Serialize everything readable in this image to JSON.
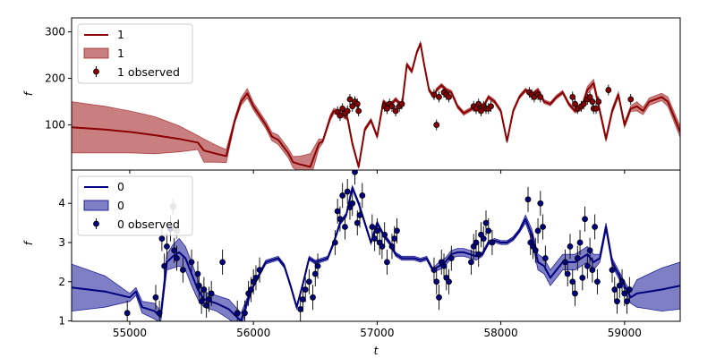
{
  "chart_data": [
    {
      "type": "line",
      "panel": "top",
      "xlabel": "",
      "ylabel": "f",
      "xlim": [
        54530,
        59450
      ],
      "ylim": [
        3,
        330
      ],
      "yticks": [
        100,
        200,
        300
      ],
      "xticks": [
        55000,
        56000,
        57000,
        58000,
        59000
      ],
      "x_ticklabels_visible": false,
      "grid": false,
      "legend_position": "top-left",
      "legend": [
        {
          "kind": "line",
          "label": "1"
        },
        {
          "kind": "band",
          "label": "1"
        },
        {
          "kind": "errorbar",
          "label": "1 observed"
        }
      ],
      "colors": {
        "line": "#8b0000",
        "band": "#a52a2a",
        "band_alpha": 0.6,
        "marker": "#8b0000"
      },
      "model_line": {
        "x": [
          54530,
          54800,
          55000,
          55200,
          55400,
          55550,
          55600,
          55700,
          55780,
          55850,
          55900,
          55950,
          56000,
          56100,
          56150,
          56200,
          56280,
          56320,
          56380,
          56460,
          56530,
          56560,
          56620,
          56650,
          56700,
          56760,
          56800,
          56850,
          56900,
          56950,
          57000,
          57050,
          57100,
          57150,
          57200,
          57240,
          57280,
          57320,
          57350,
          57380,
          57420,
          57460,
          57480,
          57520,
          57560,
          57600,
          57650,
          57700,
          57800,
          57850,
          57900,
          57950,
          58000,
          58050,
          58100,
          58150,
          58200,
          58250,
          58300,
          58350,
          58400,
          58450,
          58500,
          58550,
          58600,
          58650,
          58700,
          58750,
          58800,
          58850,
          58900,
          58950,
          59000,
          59050,
          59100,
          59150,
          59200,
          59300,
          59350,
          59450
        ],
        "y": [
          95,
          90,
          85,
          78,
          70,
          62,
          45,
          38,
          33,
          110,
          150,
          168,
          140,
          100,
          75,
          68,
          40,
          20,
          15,
          10,
          60,
          65,
          115,
          130,
          125,
          115,
          60,
          10,
          90,
          110,
          75,
          150,
          140,
          155,
          140,
          230,
          215,
          255,
          275,
          230,
          175,
          160,
          175,
          185,
          175,
          170,
          140,
          125,
          140,
          135,
          160,
          150,
          130,
          65,
          130,
          160,
          175,
          165,
          175,
          150,
          145,
          160,
          170,
          145,
          130,
          135,
          175,
          190,
          130,
          70,
          130,
          165,
          100,
          135,
          140,
          130,
          150,
          160,
          150,
          85
        ],
        "band_halfwidth": [
          55,
          50,
          45,
          40,
          28,
          15,
          25,
          18,
          14,
          6,
          8,
          10,
          8,
          8,
          9,
          10,
          10,
          12,
          18,
          28,
          10,
          4,
          6,
          6,
          5,
          5,
          5,
          4,
          4,
          4,
          4,
          4,
          4,
          4,
          4,
          4,
          4,
          4,
          4,
          4,
          4,
          4,
          4,
          4,
          4,
          4,
          4,
          4,
          4,
          4,
          4,
          4,
          4,
          4,
          4,
          4,
          4,
          4,
          4,
          4,
          4,
          4,
          4,
          4,
          4,
          4,
          8,
          8,
          6,
          6,
          6,
          6,
          6,
          6,
          10,
          8,
          8,
          8,
          10,
          12
        ]
      },
      "observed": {
        "x": [
          56680,
          56700,
          56720,
          56740,
          56760,
          56780,
          56800,
          56820,
          56840,
          56850,
          57060,
          57080,
          57100,
          57120,
          57150,
          57180,
          57200,
          57460,
          57480,
          57500,
          57540,
          57560,
          57580,
          57780,
          57800,
          57820,
          57840,
          57860,
          57880,
          57900,
          57920,
          58230,
          58250,
          58270,
          58300,
          58320,
          58580,
          58600,
          58620,
          58650,
          58670,
          58700,
          58720,
          58740,
          58750,
          58770,
          58790,
          58870,
          59050
        ],
        "y": [
          128,
          120,
          135,
          125,
          130,
          155,
          140,
          150,
          145,
          130,
          140,
          135,
          145,
          140,
          130,
          140,
          145,
          165,
          100,
          160,
          170,
          165,
          160,
          140,
          135,
          145,
          130,
          140,
          135,
          135,
          140,
          170,
          165,
          160,
          165,
          160,
          160,
          145,
          135,
          140,
          145,
          155,
          160,
          150,
          135,
          135,
          150,
          175,
          155
        ]
      }
    },
    {
      "type": "line",
      "panel": "bottom",
      "xlabel": "t",
      "ylabel": "f",
      "xlim": [
        54530,
        59450
      ],
      "ylim": [
        0.99,
        4.85
      ],
      "yticks": [
        1,
        2,
        3,
        4
      ],
      "xticks": [
        55000,
        56000,
        57000,
        58000,
        59000
      ],
      "xticklabels": [
        "55000",
        "56000",
        "57000",
        "58000",
        "59000"
      ],
      "yticklabels": [
        "1",
        "2",
        "3",
        "4"
      ],
      "grid": false,
      "legend_position": "top-left",
      "legend": [
        {
          "kind": "line",
          "label": "0"
        },
        {
          "kind": "band",
          "label": "0"
        },
        {
          "kind": "errorbar",
          "label": "0 observed"
        }
      ],
      "colors": {
        "line": "#000080",
        "band": "#00008b",
        "band_alpha": 0.5,
        "marker": "#000080"
      },
      "model_line": {
        "x": [
          54530,
          54800,
          55000,
          55050,
          55100,
          55200,
          55250,
          55300,
          55350,
          55400,
          55450,
          55500,
          55550,
          55600,
          55700,
          55800,
          55900,
          55950,
          56000,
          56050,
          56100,
          56150,
          56200,
          56250,
          56300,
          56350,
          56400,
          56450,
          56500,
          56600,
          56650,
          56700,
          56750,
          56800,
          56850,
          56900,
          56950,
          57000,
          57050,
          57100,
          57150,
          57200,
          57300,
          57350,
          57400,
          57450,
          57500,
          57550,
          57600,
          57650,
          57700,
          57750,
          57800,
          57850,
          57900,
          57950,
          58000,
          58050,
          58100,
          58150,
          58200,
          58250,
          58300,
          58350,
          58400,
          58450,
          58500,
          58550,
          58600,
          58650,
          58700,
          58750,
          58800,
          58850,
          58900,
          58950,
          59000,
          59050,
          59100,
          59200,
          59300,
          59450
        ],
        "y": [
          1.85,
          1.75,
          1.6,
          1.75,
          1.35,
          1.25,
          1.1,
          2.5,
          2.65,
          2.75,
          2.6,
          2.2,
          1.8,
          1.55,
          1.45,
          1.3,
          1.0,
          1.5,
          1.9,
          2.2,
          2.5,
          2.55,
          2.6,
          2.4,
          1.9,
          1.35,
          1.95,
          2.6,
          2.5,
          2.6,
          3.0,
          3.5,
          3.7,
          4.4,
          4.0,
          3.5,
          3.0,
          3.5,
          3.2,
          3.0,
          2.7,
          2.6,
          2.6,
          2.55,
          2.6,
          2.3,
          2.4,
          2.5,
          2.7,
          2.75,
          2.75,
          2.7,
          2.65,
          2.7,
          3.0,
          3.05,
          3.0,
          3.0,
          3.1,
          3.3,
          3.6,
          3.2,
          2.5,
          2.4,
          2.1,
          2.3,
          2.5,
          2.5,
          2.5,
          2.6,
          2.7,
          2.5,
          2.6,
          3.4,
          2.5,
          2.2,
          1.9,
          1.6,
          1.7,
          1.75,
          1.8,
          1.9
        ],
        "band_halfwidth": [
          0.6,
          0.4,
          0.1,
          0.1,
          0.15,
          0.2,
          0.15,
          0.2,
          0.3,
          0.35,
          0.3,
          0.3,
          0.25,
          0.2,
          0.2,
          0.25,
          0.2,
          0.1,
          0.05,
          0.05,
          0.05,
          0.05,
          0.05,
          0.05,
          0.05,
          0.05,
          0.05,
          0.05,
          0.05,
          0.05,
          0.05,
          0.05,
          0.05,
          0.05,
          0.05,
          0.05,
          0.05,
          0.05,
          0.05,
          0.05,
          0.05,
          0.05,
          0.05,
          0.05,
          0.05,
          0.05,
          0.1,
          0.1,
          0.1,
          0.1,
          0.1,
          0.1,
          0.1,
          0.05,
          0.05,
          0.05,
          0.05,
          0.05,
          0.05,
          0.05,
          0.1,
          0.15,
          0.2,
          0.2,
          0.2,
          0.2,
          0.2,
          0.2,
          0.2,
          0.2,
          0.2,
          0.2,
          0.1,
          0.1,
          0.1,
          0.1,
          0.1,
          0.15,
          0.35,
          0.45,
          0.55,
          0.6
        ]
      },
      "observed": {
        "x": [
          54980,
          55210,
          55240,
          55260,
          55280,
          55300,
          55330,
          55360,
          55380,
          55430,
          55500,
          55550,
          55560,
          55580,
          55600,
          55620,
          55640,
          55660,
          55750,
          55870,
          55930,
          55960,
          55980,
          56000,
          56020,
          56050,
          56380,
          56400,
          56420,
          56450,
          56480,
          56500,
          56520,
          56660,
          56680,
          56700,
          56720,
          56740,
          56760,
          56780,
          56800,
          56820,
          56840,
          56860,
          56880,
          56960,
          56980,
          57000,
          57020,
          57040,
          57060,
          57080,
          57120,
          57140,
          57160,
          57460,
          57480,
          57500,
          57520,
          57540,
          57560,
          57580,
          57600,
          57760,
          57780,
          57800,
          57820,
          57840,
          57860,
          57880,
          57900,
          57930,
          58220,
          58240,
          58260,
          58280,
          58300,
          58320,
          58340,
          58360,
          58520,
          58540,
          58560,
          58580,
          58600,
          58620,
          58640,
          58660,
          58680,
          58700,
          58720,
          58740,
          58760,
          58780,
          58900,
          58920,
          58940,
          58960,
          58980,
          59000,
          59020,
          59040
        ],
        "y": [
          1.2,
          1.6,
          1.2,
          3.1,
          2.4,
          2.9,
          3.35,
          2.8,
          2.6,
          2.3,
          2.5,
          2.2,
          1.9,
          1.5,
          1.8,
          1.4,
          1.55,
          1.7,
          2.5,
          1.2,
          1.2,
          1.7,
          1.8,
          2.0,
          2.1,
          2.3,
          1.3,
          1.55,
          1.8,
          2.0,
          1.6,
          2.2,
          2.4,
          3.0,
          3.8,
          3.6,
          4.2,
          3.4,
          4.3,
          3.9,
          4.0,
          4.8,
          3.5,
          3.7,
          4.2,
          3.4,
          3.1,
          3.3,
          3.0,
          2.9,
          3.2,
          2.5,
          2.9,
          3.1,
          3.3,
          2.3,
          2.0,
          1.6,
          2.5,
          2.4,
          2.1,
          2.0,
          2.6,
          2.5,
          2.9,
          3.0,
          2.7,
          3.2,
          3.1,
          3.5,
          3.3,
          3.0,
          4.1,
          3.0,
          2.9,
          2.8,
          3.3,
          4.0,
          3.4,
          2.6,
          2.5,
          2.2,
          2.9,
          2.0,
          1.7,
          2.6,
          3.0,
          2.1,
          3.6,
          2.4,
          2.8,
          2.3,
          3.4,
          2.0,
          2.3,
          1.8,
          1.5,
          1.9,
          2.0,
          1.7,
          1.5,
          1.8
        ]
      },
      "highlighted_points": {
        "x": [
          55350,
          55380
        ],
        "y": [
          3.92,
          3.3
        ]
      }
    }
  ]
}
